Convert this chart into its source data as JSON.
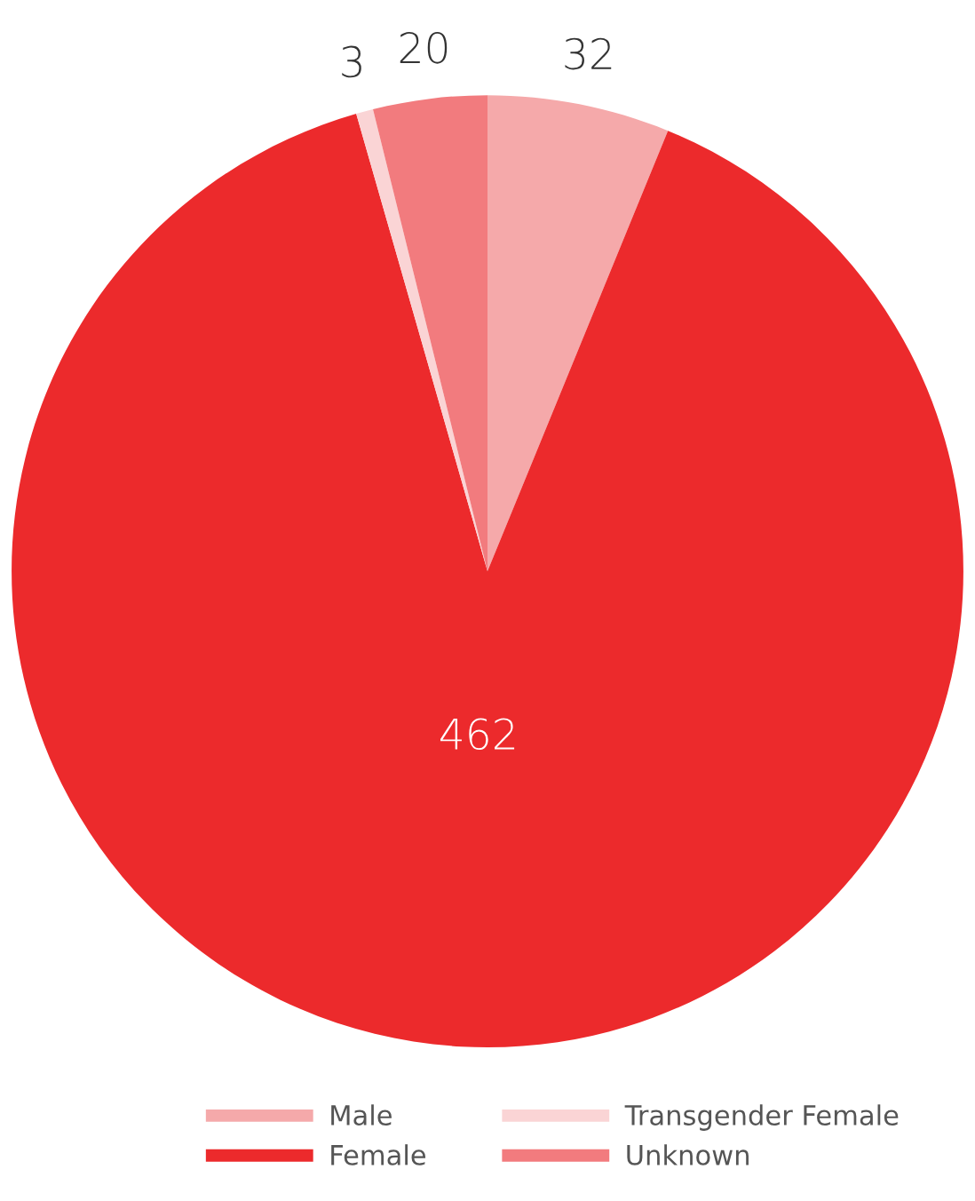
{
  "chart_data": {
    "type": "pie",
    "categories": [
      "Male",
      "Female",
      "Transgender Female",
      "Unknown"
    ],
    "values": [
      32,
      462,
      3,
      20
    ],
    "colors": [
      "#f5a9aa",
      "#ec2a2c",
      "#fad4d5",
      "#f27b7e"
    ],
    "data_labels": true,
    "legend": "bottom"
  }
}
